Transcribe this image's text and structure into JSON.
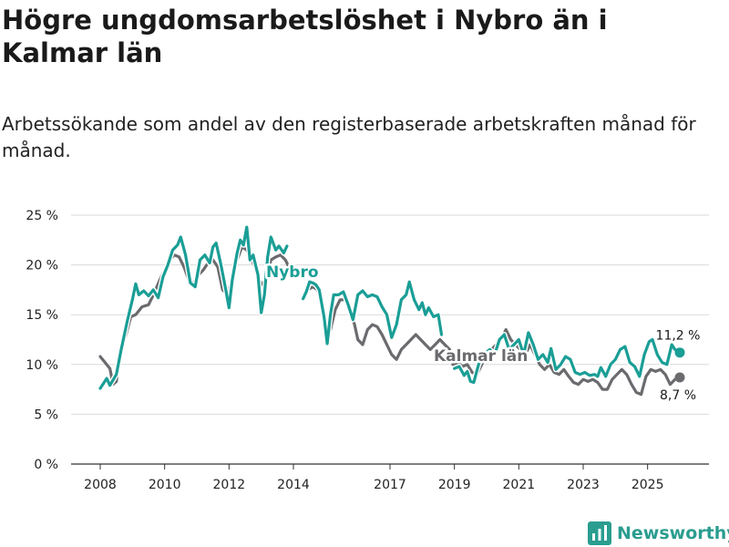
{
  "title": "Högre ungdomsarbetslöshet i Nybro än i Kalmar län",
  "subtitle": "Arbetssökande som andel av den registerbaserade arbetskraften månad för månad.",
  "brand": {
    "name": "Newsworthy",
    "icon": "bar-chart-logo-icon"
  },
  "colors": {
    "nybro": "#1a9e96",
    "kalmar": "#6b6b6f",
    "grid": "#d9d9d9",
    "axis": "#333333"
  },
  "chart_data": {
    "type": "line",
    "title": "Högre ungdomsarbetslöshet i Nybro än i Kalmar län",
    "subtitle": "Arbetssökande som andel av den registerbaserade arbetskraften månad för månad.",
    "xlabel": "",
    "ylabel": "",
    "xlim": [
      2007.5,
      2026.5
    ],
    "ylim": [
      0,
      25
    ],
    "grid": true,
    "yticks": [
      0,
      5,
      10,
      15,
      20,
      25
    ],
    "ytick_labels": [
      "0 %",
      "5 %",
      "10 %",
      "15 %",
      "20 %",
      "25 %"
    ],
    "xticks": [
      2008,
      2010,
      2012,
      2014,
      2017,
      2019,
      2021,
      2023,
      2025
    ],
    "xtick_labels": [
      "2008",
      "2010",
      "2012",
      "2014",
      "2017",
      "2019",
      "2021",
      "2023",
      "2025"
    ],
    "series": [
      {
        "name": "Nybro",
        "label": "Nybro",
        "end_label": "11,2 %",
        "points": [
          [
            2008.0,
            7.6
          ],
          [
            2008.2,
            8.6
          ],
          [
            2008.3,
            7.9
          ],
          [
            2008.5,
            9.0
          ],
          [
            2008.65,
            11.5
          ],
          [
            2008.85,
            14.5
          ],
          [
            2009.0,
            16.5
          ],
          [
            2009.1,
            18.1
          ],
          [
            2009.2,
            17.0
          ],
          [
            2009.35,
            17.4
          ],
          [
            2009.5,
            16.9
          ],
          [
            2009.65,
            17.5
          ],
          [
            2009.8,
            16.7
          ],
          [
            2009.95,
            18.8
          ],
          [
            2010.1,
            20.0
          ],
          [
            2010.25,
            21.5
          ],
          [
            2010.4,
            22.0
          ],
          [
            2010.5,
            22.8
          ],
          [
            2010.65,
            21.0
          ],
          [
            2010.8,
            18.2
          ],
          [
            2010.95,
            17.8
          ],
          [
            2011.1,
            20.5
          ],
          [
            2011.25,
            21.0
          ],
          [
            2011.4,
            20.2
          ],
          [
            2011.5,
            21.8
          ],
          [
            2011.6,
            22.2
          ],
          [
            2011.75,
            20.0
          ],
          [
            2011.9,
            17.5
          ],
          [
            2012.0,
            15.7
          ],
          [
            2012.1,
            18.5
          ],
          [
            2012.25,
            21.2
          ],
          [
            2012.35,
            22.5
          ],
          [
            2012.45,
            22.0
          ],
          [
            2012.55,
            23.8
          ],
          [
            2012.65,
            20.5
          ],
          [
            2012.75,
            21.0
          ],
          [
            2012.9,
            19.0
          ],
          [
            2013.0,
            15.2
          ],
          [
            2013.1,
            17.0
          ],
          [
            2013.2,
            20.8
          ],
          [
            2013.3,
            22.8
          ],
          [
            2013.45,
            21.5
          ],
          [
            2013.55,
            21.9
          ],
          [
            2013.7,
            21.2
          ],
          [
            2013.8,
            21.9
          ]
        ],
        "points2": [
          [
            2014.3,
            16.6
          ],
          [
            2014.4,
            17.3
          ],
          [
            2014.5,
            18.3
          ],
          [
            2014.6,
            18.2
          ],
          [
            2014.7,
            18.0
          ],
          [
            2014.8,
            17.5
          ],
          [
            2014.95,
            14.8
          ],
          [
            2015.05,
            12.1
          ],
          [
            2015.15,
            15.0
          ],
          [
            2015.25,
            17.0
          ],
          [
            2015.4,
            17.0
          ],
          [
            2015.55,
            17.3
          ],
          [
            2015.7,
            16.0
          ],
          [
            2015.85,
            14.5
          ],
          [
            2016.0,
            17.0
          ],
          [
            2016.15,
            17.4
          ],
          [
            2016.3,
            16.8
          ],
          [
            2016.45,
            17.0
          ],
          [
            2016.6,
            16.8
          ],
          [
            2016.75,
            15.8
          ],
          [
            2016.9,
            15.0
          ],
          [
            2017.05,
            12.7
          ],
          [
            2017.2,
            14.0
          ],
          [
            2017.35,
            16.5
          ],
          [
            2017.5,
            17.0
          ],
          [
            2017.6,
            18.3
          ],
          [
            2017.75,
            16.5
          ],
          [
            2017.9,
            15.5
          ],
          [
            2018.0,
            16.2
          ],
          [
            2018.1,
            15.0
          ],
          [
            2018.2,
            15.7
          ],
          [
            2018.35,
            14.8
          ],
          [
            2018.5,
            15.0
          ],
          [
            2018.6,
            13.0
          ]
        ],
        "points3": [
          [
            2019.0,
            9.6
          ],
          [
            2019.15,
            9.8
          ],
          [
            2019.3,
            8.9
          ],
          [
            2019.4,
            9.3
          ],
          [
            2019.5,
            8.3
          ],
          [
            2019.6,
            8.2
          ],
          [
            2019.75,
            10.0
          ],
          [
            2019.9,
            11.0
          ],
          [
            2020.1,
            11.5
          ],
          [
            2020.25,
            11.0
          ],
          [
            2020.4,
            12.5
          ],
          [
            2020.55,
            13.0
          ],
          [
            2020.7,
            11.5
          ],
          [
            2020.85,
            12.0
          ],
          [
            2021.0,
            12.5
          ],
          [
            2021.15,
            11.0
          ],
          [
            2021.3,
            13.2
          ],
          [
            2021.45,
            12.0
          ],
          [
            2021.6,
            10.5
          ],
          [
            2021.75,
            11.0
          ],
          [
            2021.9,
            10.2
          ],
          [
            2022.0,
            11.6
          ],
          [
            2022.15,
            9.5
          ],
          [
            2022.3,
            10.0
          ],
          [
            2022.45,
            10.8
          ],
          [
            2022.6,
            10.5
          ],
          [
            2022.75,
            9.2
          ],
          [
            2022.9,
            9.0
          ],
          [
            2023.05,
            9.2
          ],
          [
            2023.2,
            8.9
          ],
          [
            2023.35,
            9.0
          ],
          [
            2023.45,
            8.8
          ],
          [
            2023.55,
            9.7
          ],
          [
            2023.7,
            8.8
          ],
          [
            2023.85,
            10.0
          ],
          [
            2024.0,
            10.5
          ],
          [
            2024.15,
            11.5
          ],
          [
            2024.3,
            11.8
          ],
          [
            2024.45,
            10.2
          ],
          [
            2024.6,
            9.8
          ],
          [
            2024.75,
            8.8
          ],
          [
            2024.9,
            11.0
          ],
          [
            2025.05,
            12.3
          ],
          [
            2025.15,
            12.5
          ],
          [
            2025.3,
            11.0
          ],
          [
            2025.45,
            10.2
          ],
          [
            2025.6,
            10.0
          ],
          [
            2025.75,
            12.0
          ],
          [
            2025.85,
            11.5
          ],
          [
            2026.0,
            11.2
          ]
        ]
      },
      {
        "name": "Kalmar län",
        "label": "Kalmar län",
        "end_label": "8,7 %",
        "points": [
          [
            2008.0,
            10.8
          ],
          [
            2008.15,
            10.2
          ],
          [
            2008.3,
            9.6
          ],
          [
            2008.4,
            8.0
          ],
          [
            2008.5,
            8.3
          ],
          [
            2008.6,
            11.0
          ],
          [
            2008.8,
            13.0
          ],
          [
            2008.95,
            14.8
          ],
          [
            2009.1,
            15.0
          ],
          [
            2009.3,
            15.8
          ],
          [
            2009.5,
            16.0
          ],
          [
            2009.65,
            17.0
          ],
          [
            2009.85,
            18.5
          ],
          [
            2010.0,
            19.5
          ],
          [
            2010.15,
            20.5
          ],
          [
            2010.3,
            21.0
          ],
          [
            2010.45,
            20.8
          ],
          [
            2010.6,
            19.8
          ],
          [
            2010.75,
            18.5
          ],
          [
            2010.9,
            18.2
          ],
          [
            2011.05,
            19.0
          ],
          [
            2011.2,
            19.5
          ],
          [
            2011.35,
            20.2
          ],
          [
            2011.5,
            20.5
          ],
          [
            2011.65,
            19.8
          ],
          [
            2011.8,
            17.5
          ],
          [
            2011.95,
            17.0
          ],
          [
            2012.1,
            18.5
          ],
          [
            2012.25,
            20.5
          ],
          [
            2012.4,
            21.8
          ],
          [
            2012.55,
            21.5
          ],
          [
            2012.7,
            20.5
          ],
          [
            2012.85,
            19.5
          ],
          [
            2013.0,
            18.0
          ],
          [
            2013.15,
            18.5
          ],
          [
            2013.3,
            20.5
          ],
          [
            2013.45,
            20.8
          ],
          [
            2013.6,
            21.0
          ],
          [
            2013.75,
            20.5
          ],
          [
            2013.9,
            19.5
          ]
        ],
        "points2": [
          [
            2014.3,
            16.8
          ],
          [
            2014.45,
            17.5
          ],
          [
            2014.6,
            17.8
          ],
          [
            2014.75,
            17.5
          ],
          [
            2014.9,
            16.0
          ],
          [
            2015.0,
            14.5
          ],
          [
            2015.15,
            13.5
          ],
          [
            2015.3,
            15.5
          ],
          [
            2015.45,
            16.5
          ],
          [
            2015.6,
            16.5
          ],
          [
            2015.75,
            15.5
          ],
          [
            2015.9,
            14.0
          ],
          [
            2016.0,
            12.5
          ],
          [
            2016.15,
            12.0
          ],
          [
            2016.3,
            13.5
          ],
          [
            2016.45,
            14.0
          ],
          [
            2016.6,
            13.8
          ],
          [
            2016.75,
            13.0
          ],
          [
            2016.9,
            12.0
          ],
          [
            2017.05,
            11.0
          ],
          [
            2017.2,
            10.5
          ],
          [
            2017.35,
            11.5
          ],
          [
            2017.5,
            12.0
          ],
          [
            2017.65,
            12.5
          ],
          [
            2017.8,
            13.0
          ],
          [
            2017.95,
            12.5
          ],
          [
            2018.1,
            12.0
          ],
          [
            2018.25,
            11.5
          ],
          [
            2018.4,
            12.0
          ],
          [
            2018.55,
            12.5
          ],
          [
            2018.7,
            12.0
          ],
          [
            2018.85,
            11.5
          ]
        ],
        "points3": [
          [
            2018.95,
            10.0
          ],
          [
            2019.1,
            10.2
          ],
          [
            2019.25,
            9.8
          ],
          [
            2019.4,
            10.0
          ],
          [
            2019.55,
            9.2
          ],
          [
            2019.7,
            9.0
          ],
          [
            2019.85,
            10.0
          ],
          [
            2020.0,
            11.0
          ],
          [
            2020.15,
            11.5
          ],
          [
            2020.3,
            12.0
          ],
          [
            2020.45,
            12.5
          ],
          [
            2020.6,
            13.5
          ],
          [
            2020.75,
            12.5
          ],
          [
            2020.9,
            12.0
          ],
          [
            2021.05,
            11.5
          ],
          [
            2021.2,
            11.0
          ],
          [
            2021.35,
            12.0
          ],
          [
            2021.5,
            11.0
          ],
          [
            2021.65,
            10.0
          ],
          [
            2021.8,
            9.5
          ],
          [
            2021.95,
            10.0
          ],
          [
            2022.1,
            9.2
          ],
          [
            2022.25,
            9.0
          ],
          [
            2022.4,
            9.5
          ],
          [
            2022.55,
            8.8
          ],
          [
            2022.7,
            8.2
          ],
          [
            2022.85,
            8.0
          ],
          [
            2023.0,
            8.5
          ],
          [
            2023.15,
            8.3
          ],
          [
            2023.3,
            8.5
          ],
          [
            2023.45,
            8.2
          ],
          [
            2023.6,
            7.5
          ],
          [
            2023.75,
            7.5
          ],
          [
            2023.9,
            8.5
          ],
          [
            2024.05,
            9.0
          ],
          [
            2024.2,
            9.5
          ],
          [
            2024.35,
            9.0
          ],
          [
            2024.5,
            8.0
          ],
          [
            2024.65,
            7.2
          ],
          [
            2024.8,
            7.0
          ],
          [
            2024.95,
            8.8
          ],
          [
            2025.1,
            9.5
          ],
          [
            2025.25,
            9.3
          ],
          [
            2025.4,
            9.5
          ],
          [
            2025.55,
            9.0
          ],
          [
            2025.7,
            8.0
          ],
          [
            2025.85,
            8.5
          ],
          [
            2026.0,
            8.7
          ]
        ]
      }
    ]
  }
}
